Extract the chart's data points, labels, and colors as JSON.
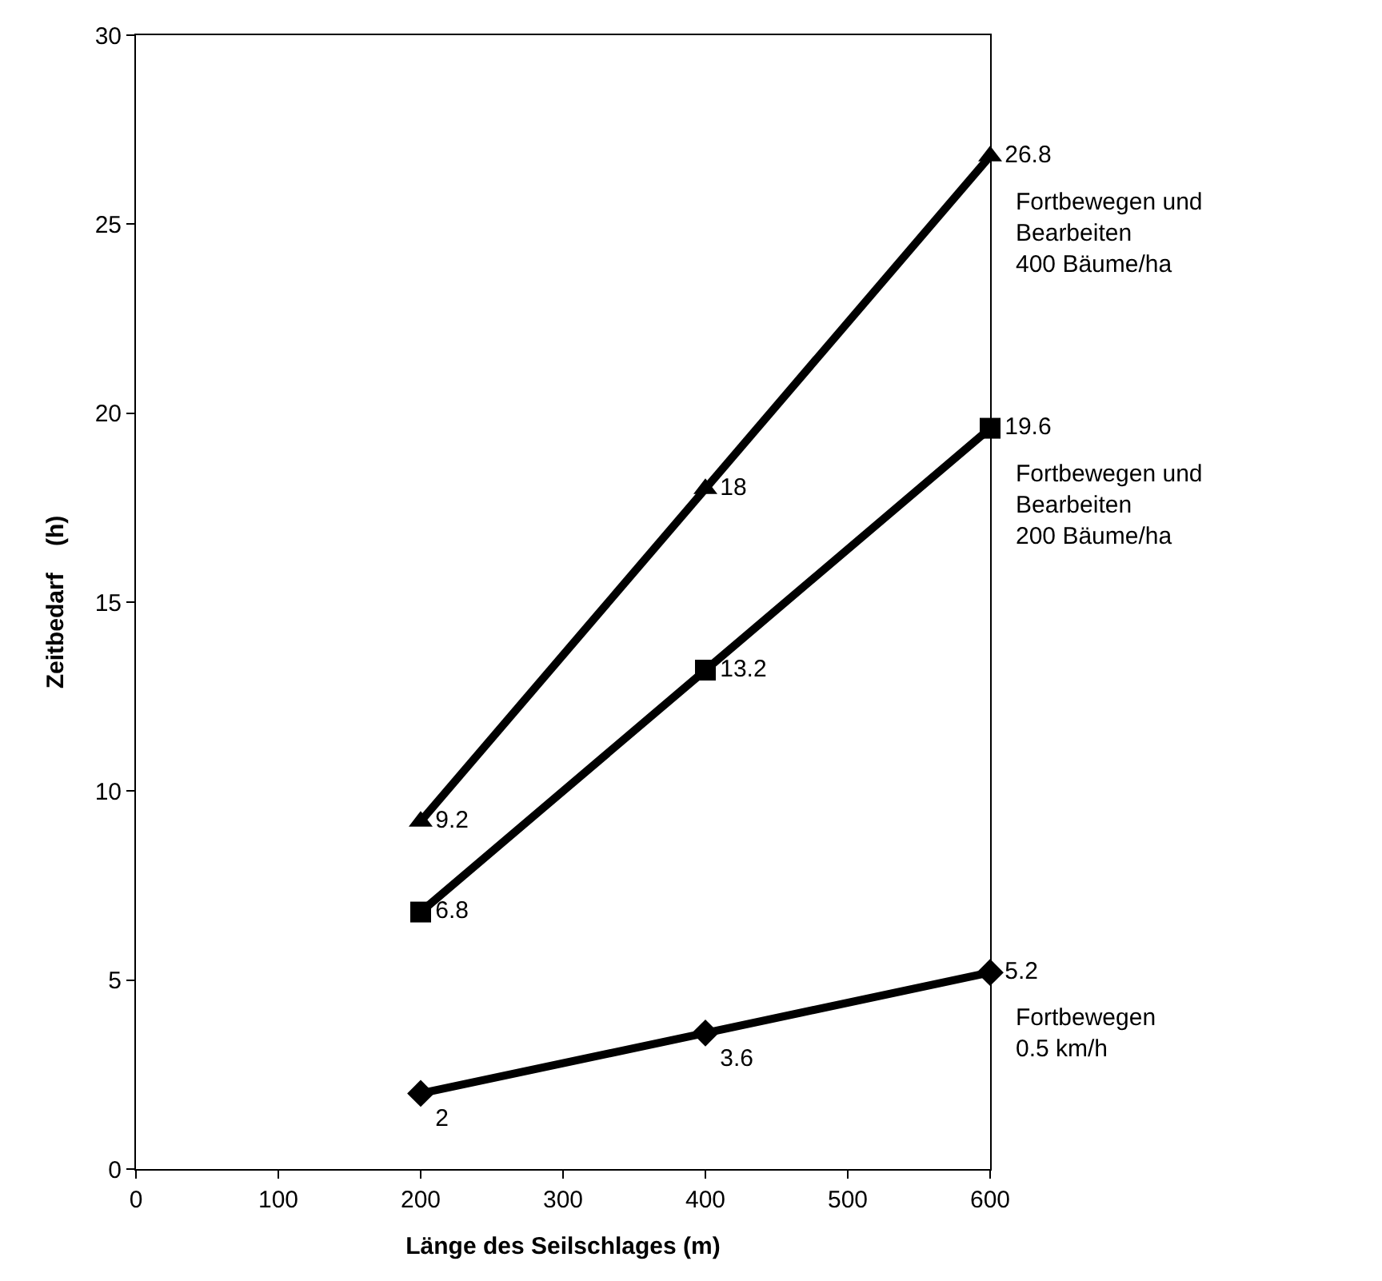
{
  "chart_data": {
    "type": "line",
    "xlabel": "Länge des Seilschlages (m)",
    "ylabel": "Zeitbedarf    (h)",
    "x": [
      200,
      400,
      600
    ],
    "series": [
      {
        "name": "Fortbewegen und\nBearbeiten\n400 Bäume/ha",
        "color": "#000000",
        "marker": "triangle",
        "values": [
          9.2,
          18,
          26.8
        ]
      },
      {
        "name": "Fortbewegen und\nBearbeiten\n200 Bäume/ha",
        "color": "#000000",
        "marker": "square",
        "values": [
          6.8,
          13.2,
          19.6
        ]
      },
      {
        "name": "Fortbewegen\n0.5 km/h",
        "color": "#000000",
        "marker": "diamond",
        "values": [
          2,
          3.6,
          5.2
        ]
      }
    ],
    "xlim": [
      0,
      600
    ],
    "xticks": [
      0,
      100,
      200,
      300,
      400,
      500,
      600
    ],
    "ylim": [
      0,
      30
    ],
    "yticks": [
      0,
      5,
      10,
      15,
      20,
      25,
      30
    ],
    "legend": false,
    "data_labels": true,
    "line_style": "solid"
  }
}
